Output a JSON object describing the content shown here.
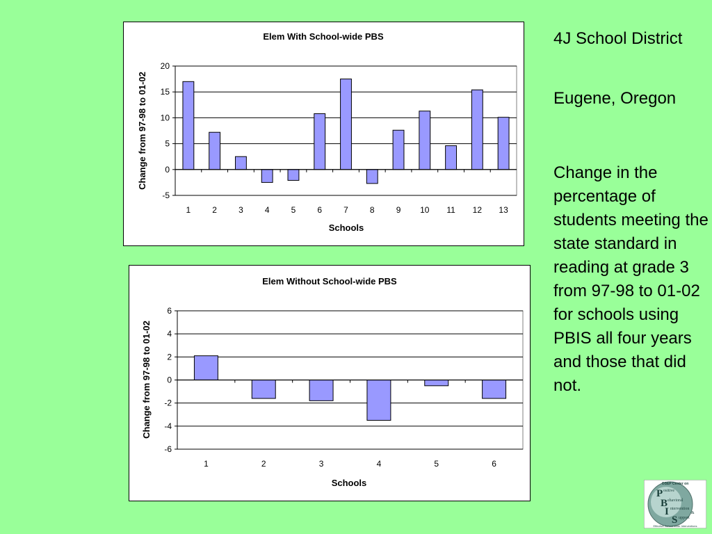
{
  "side_panel": {
    "district": "4J School District",
    "location": "Eugene, Oregon",
    "description": "Change in the percentage of students meeting the state standard in reading at grade 3 from 97-98 to 01-02 for schools using PBIS all four years and those that did not."
  },
  "logo": {
    "header": "OSEP Center on",
    "words": [
      "ositive",
      "ehavioral",
      "ntervention",
      "upport"
    ],
    "initials": [
      "P",
      "B",
      "I",
      "S"
    ],
    "amp": "&",
    "footer": "Effective School-Wide Interventions"
  },
  "colors": {
    "background": "#99ff99",
    "bar_fill": "#9999ff",
    "bar_stroke": "#000000"
  },
  "chart_data": [
    {
      "type": "bar",
      "title": "Elem With School-wide PBS",
      "xlabel": "Schools",
      "ylabel": "Change from 97-98 to 01-02",
      "categories": [
        "1",
        "2",
        "3",
        "4",
        "5",
        "6",
        "7",
        "8",
        "9",
        "10",
        "11",
        "12",
        "13"
      ],
      "values": [
        17,
        7.2,
        2.5,
        -2.5,
        -2.1,
        10.8,
        17.5,
        -2.7,
        7.6,
        11.3,
        4.6,
        15.4,
        10.1
      ],
      "ylim": [
        -5,
        20
      ],
      "yticks": [
        20,
        15,
        10,
        5,
        0,
        -5
      ],
      "grid": true,
      "legend": "none"
    },
    {
      "type": "bar",
      "title": "Elem Without School-wide PBS",
      "xlabel": "Schools",
      "ylabel": "Change from 97-98 to 01-02",
      "categories": [
        "1",
        "2",
        "3",
        "4",
        "5",
        "6"
      ],
      "values": [
        2.1,
        -1.6,
        -1.8,
        -3.5,
        -0.5,
        -1.6
      ],
      "ylim": [
        -6,
        6
      ],
      "yticks": [
        6,
        4,
        2,
        0,
        -2,
        -4,
        -6
      ],
      "grid": true,
      "legend": "none"
    }
  ]
}
